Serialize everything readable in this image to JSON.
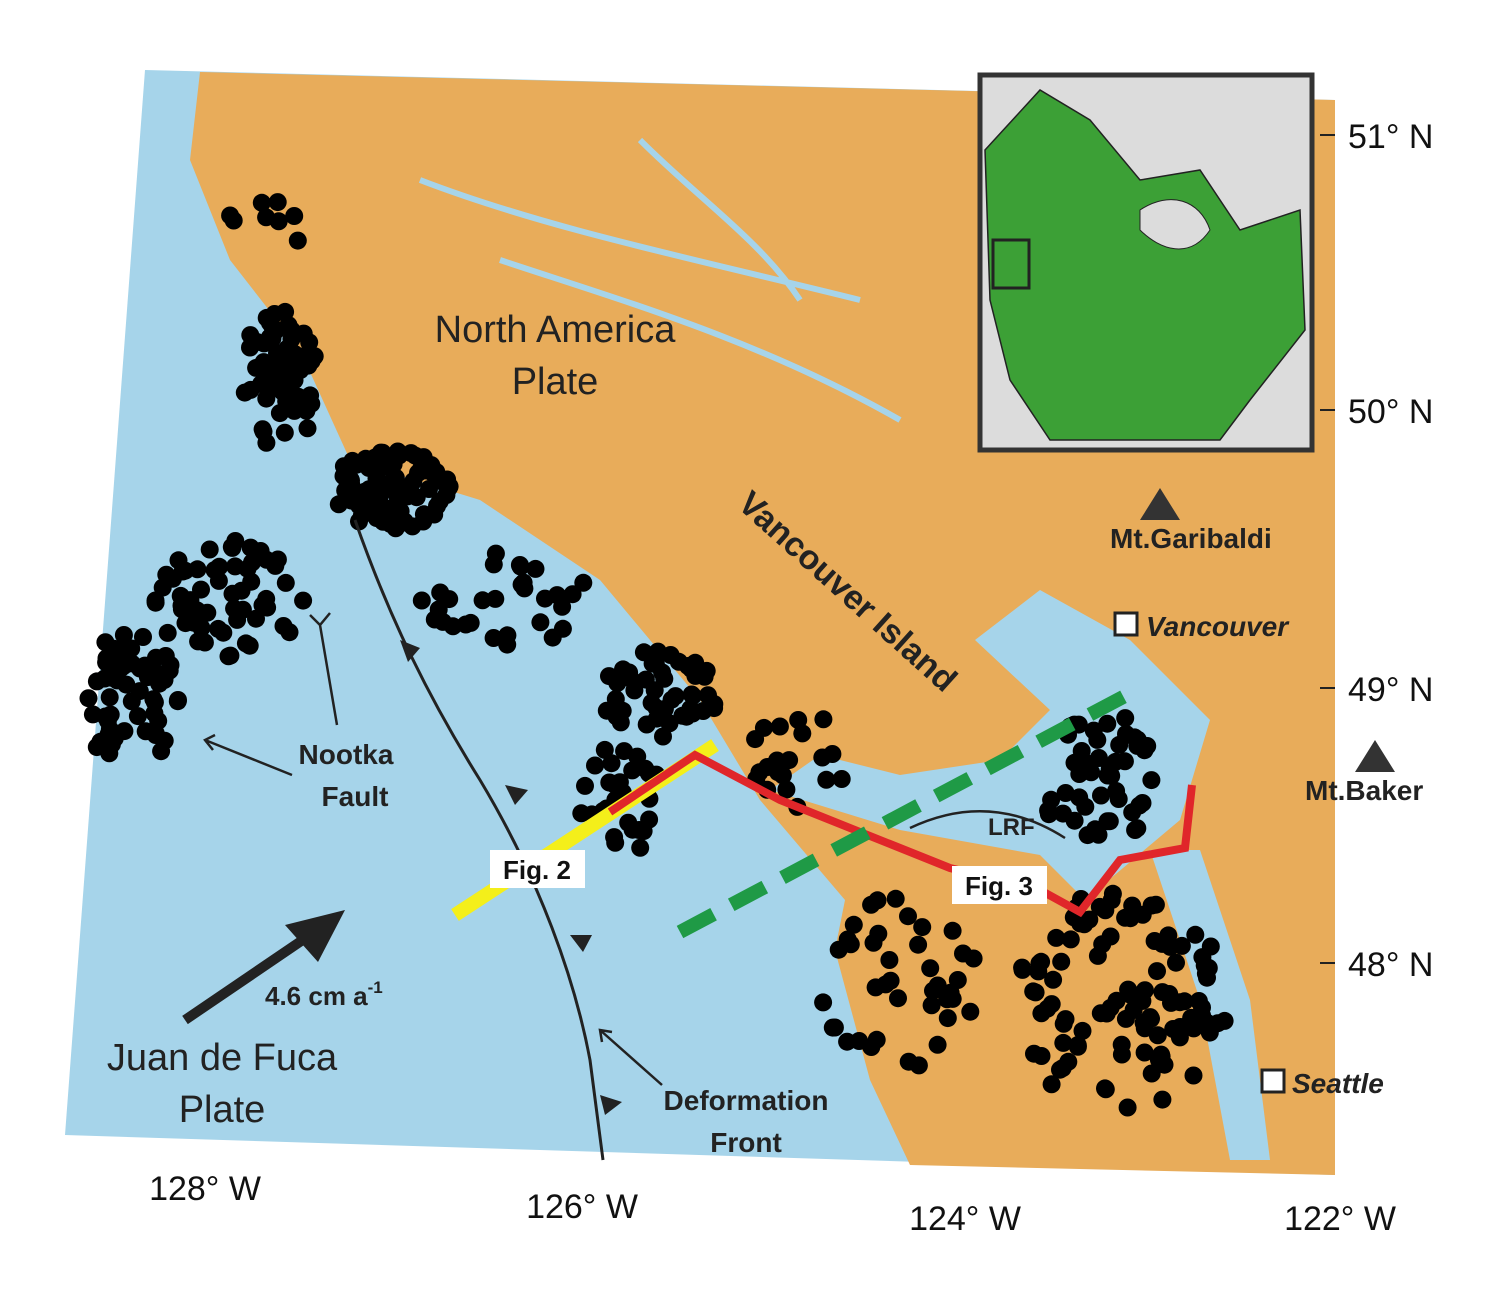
{
  "map": {
    "lat_labels": [
      "51° N",
      "50° N",
      "49° N",
      "48° N"
    ],
    "lon_labels": [
      "128° W",
      "126° W",
      "124° W",
      "122° W"
    ],
    "plates": {
      "north_america": [
        "North America",
        "Plate"
      ],
      "juan_de_fuca": [
        "Juan de Fuca",
        "Plate"
      ]
    },
    "vancouver_island": "Vancouver Island",
    "places": {
      "garibaldi": "Mt.Garibaldi",
      "vancouver": "Vancouver",
      "baker": "Mt.Baker",
      "seattle": "Seattle"
    },
    "faults": {
      "nootka": [
        "Nootka",
        "Fault"
      ],
      "deformation_front": [
        "Deformation",
        "Front"
      ],
      "lrf": "LRF"
    },
    "figures": {
      "fig2": "Fig. 2",
      "fig3": "Fig. 3"
    },
    "velocity": {
      "text": "4.6 cm a",
      "superscript": "-1"
    }
  }
}
